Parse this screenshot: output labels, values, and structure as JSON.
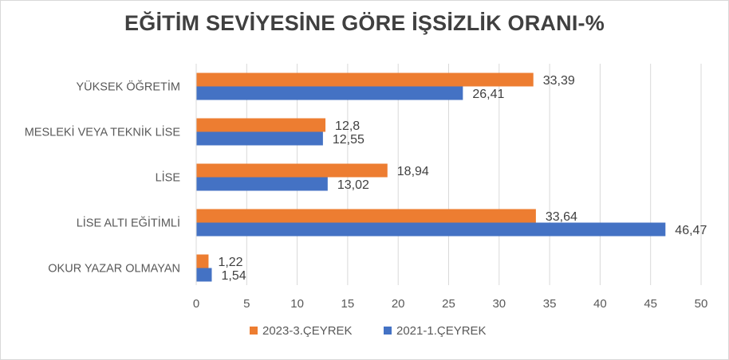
{
  "chart_data": {
    "type": "bar",
    "orientation": "horizontal",
    "title": "EĞİTİM SEVİYESİNE GÖRE İŞSİZLİK ORANI-%",
    "categories": [
      "YÜKSEK ÖĞRETİM",
      "MESLEKİ VEYA TEKNİK LİSE",
      "LİSE",
      "LİSE ALTI EĞİTİMLİ",
      "OKUR YAZAR OLMAYAN"
    ],
    "series": [
      {
        "name": "2023-3.ÇEYREK",
        "color": "#ed7d31",
        "values": [
          33.39,
          12.8,
          18.94,
          33.64,
          1.22
        ],
        "labels": [
          "33,39",
          "12,8",
          "18,94",
          "33,64",
          "1,22"
        ]
      },
      {
        "name": "2021-1.ÇEYREK",
        "color": "#4472c4",
        "values": [
          26.41,
          12.55,
          13.02,
          46.47,
          1.54
        ],
        "labels": [
          "26,41",
          "12,55",
          "13,02",
          "46,47",
          "1,54"
        ]
      }
    ],
    "xlim": [
      0,
      50
    ],
    "xticks": [
      0,
      5,
      10,
      15,
      20,
      25,
      30,
      35,
      40,
      45,
      50
    ],
    "grid": true,
    "legend": "bottom"
  }
}
